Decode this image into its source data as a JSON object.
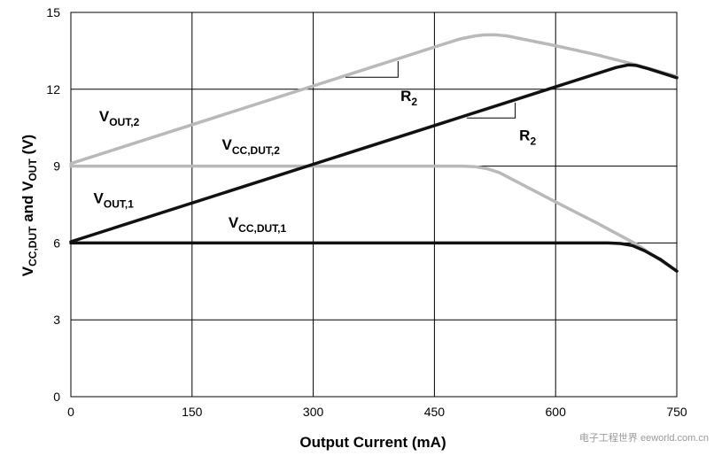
{
  "chart_data": {
    "type": "line",
    "title": "",
    "xlabel": "Output Current (mA)",
    "ylabel": {
      "parts": [
        [
          "V",
          false
        ],
        [
          "CC,DUT",
          true
        ],
        [
          " and V",
          false
        ],
        [
          "OUT",
          true
        ],
        [
          " (V)",
          false
        ]
      ]
    },
    "xlim": [
      0,
      750
    ],
    "ylim": [
      0,
      15
    ],
    "xticks": [
      0,
      150,
      300,
      450,
      600,
      750
    ],
    "yticks": [
      0,
      3,
      6,
      9,
      12,
      15
    ],
    "grid": true,
    "series": [
      {
        "id": "vout2",
        "color": "#b9b9b9",
        "x": [
          0,
          480,
          500,
          510,
          525,
          540,
          600,
          650,
          700,
          750
        ],
        "y": [
          9.1,
          13.95,
          14.08,
          14.12,
          14.13,
          14.08,
          13.7,
          13.35,
          12.95,
          12.5
        ]
      },
      {
        "id": "vccdut2",
        "color": "#b9b9b9",
        "x": [
          0,
          485,
          500,
          515,
          530,
          600,
          650,
          700,
          750
        ],
        "y": [
          9.0,
          9.0,
          8.98,
          8.9,
          8.75,
          7.6,
          6.8,
          5.95,
          4.9
        ]
      },
      {
        "id": "vout1",
        "color": "#111111",
        "x": [
          0,
          675,
          690,
          700,
          715,
          735,
          750
        ],
        "y": [
          6.05,
          12.85,
          12.95,
          12.93,
          12.8,
          12.6,
          12.45
        ]
      },
      {
        "id": "vccdut1",
        "color": "#111111",
        "x": [
          0,
          665,
          680,
          695,
          710,
          730,
          750
        ],
        "y": [
          6.0,
          6.0,
          5.98,
          5.9,
          5.7,
          5.35,
          4.9
        ]
      }
    ],
    "annotations": [
      {
        "id": "label-vout2",
        "main": "V",
        "sub": "OUT,2",
        "x": 35,
        "y": 10.75
      },
      {
        "id": "label-vccdut2",
        "main": "V",
        "sub": "CC,DUT,2",
        "x": 187,
        "y": 9.65
      },
      {
        "id": "label-vout1",
        "main": "V",
        "sub": "OUT,1",
        "x": 28,
        "y": 7.55
      },
      {
        "id": "label-vccdut1",
        "main": "V",
        "sub": "CC,DUT,1",
        "x": 195,
        "y": 6.6
      },
      {
        "id": "label-r2-top",
        "main": "R",
        "sub": "2",
        "x": 408,
        "y": 11.55
      },
      {
        "id": "label-r2-mid",
        "main": "R",
        "sub": "2",
        "x": 555,
        "y": 10.0
      }
    ],
    "slope_markers": [
      {
        "id": "slope-marker-top",
        "x0": 340,
        "x1": 405,
        "y0": 12.47,
        "y1": 13.1
      },
      {
        "id": "slope-marker-mid",
        "x0": 490,
        "x1": 550,
        "y0": 10.88,
        "y1": 11.48
      }
    ]
  },
  "watermark": {
    "text": "电子工程世界 eeworld.com.cn"
  }
}
